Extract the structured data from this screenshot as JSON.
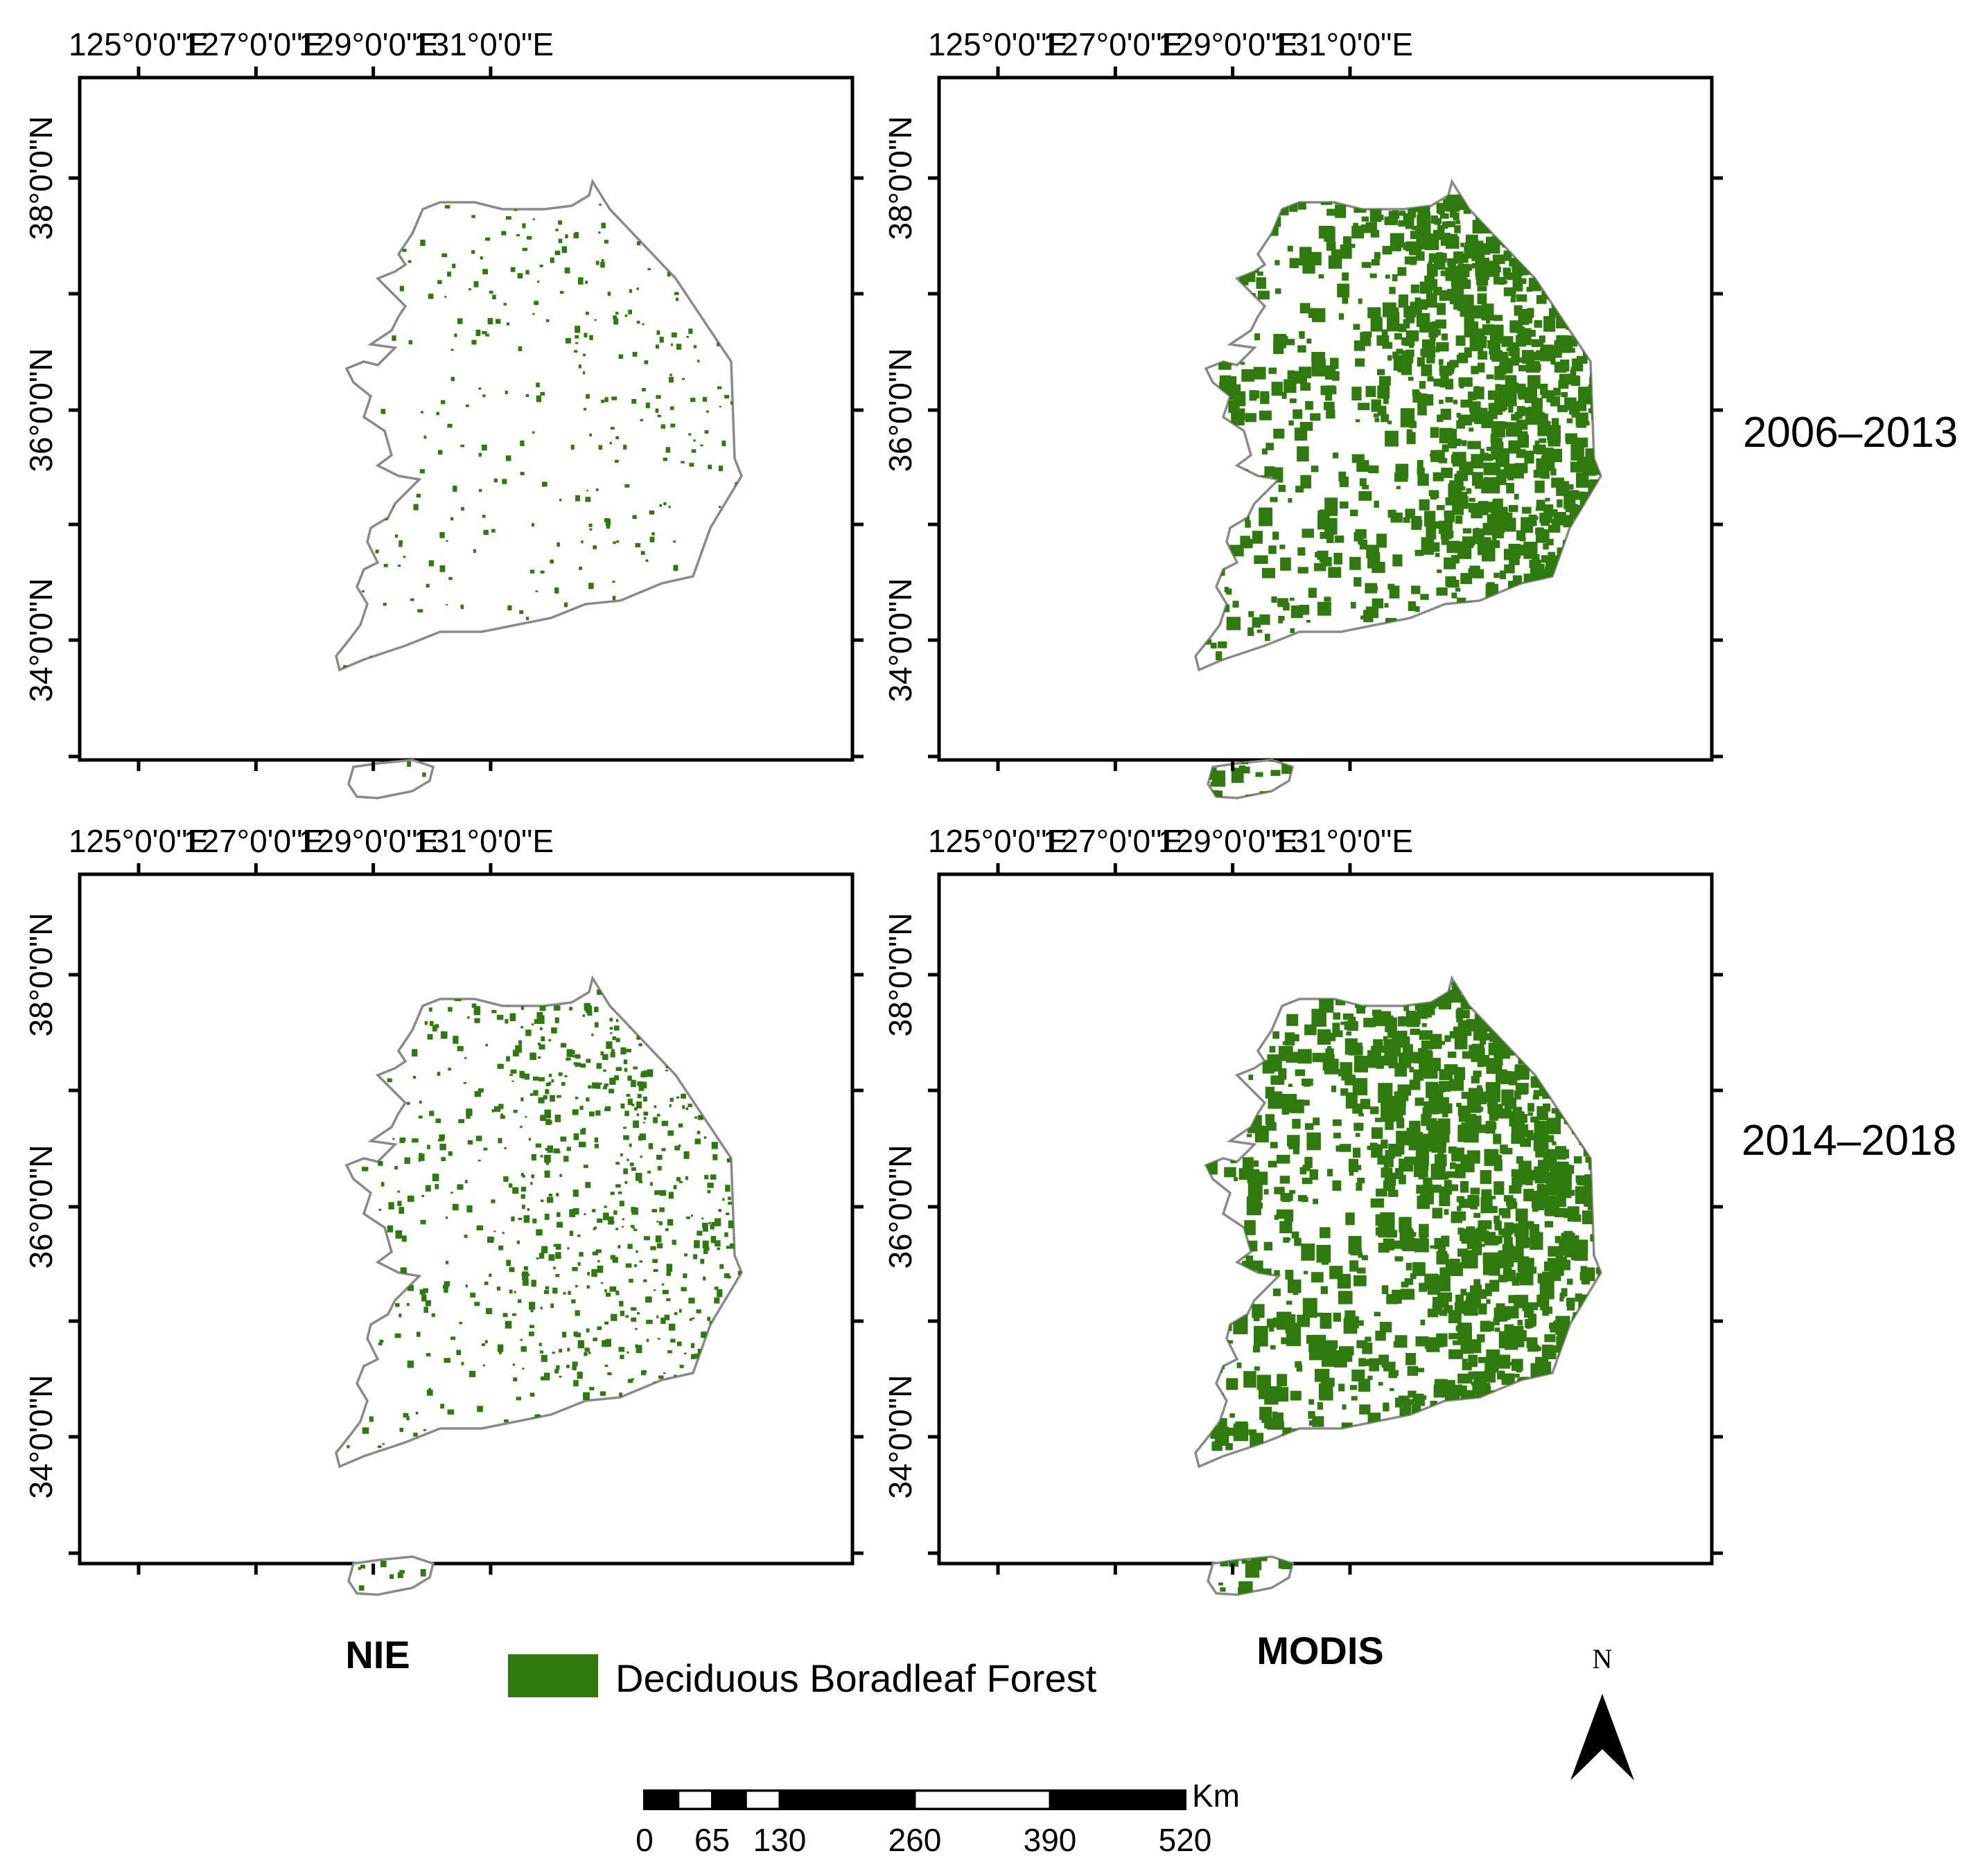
{
  "longitude_ticks": [
    "125°0'0\"E",
    "127°0'0\"E",
    "129°0'0\"E",
    "131°0'0\"E"
  ],
  "latitude_ticks": [
    "34°0'0\"N",
    "36°0'0\"N",
    "38°0'0\"N"
  ],
  "panels": [
    {
      "id": "nie-2006-2013",
      "source": "NIE",
      "period": "2006–2013",
      "forest_density": 0.12
    },
    {
      "id": "modis-2006-2013",
      "source": "MODIS",
      "period": "2006–2013",
      "forest_density": 0.55
    },
    {
      "id": "nie-2014-2018",
      "source": "NIE",
      "period": "2014–2018",
      "forest_density": 0.35
    },
    {
      "id": "modis-2014-2018",
      "source": "MODIS",
      "period": "2014–2018",
      "forest_density": 0.62
    }
  ],
  "row_labels": [
    "2006–2013",
    "2014–2018"
  ],
  "column_labels": [
    "NIE",
    "MODIS"
  ],
  "legend": {
    "label": "Deciduous Boradleaf Forest",
    "color": "#2e7a0c"
  },
  "north_arrow": {
    "label": "N"
  },
  "scale_bar": {
    "unit": "Km",
    "labels": [
      "0",
      "65",
      "130",
      "260",
      "390",
      "520"
    ]
  }
}
